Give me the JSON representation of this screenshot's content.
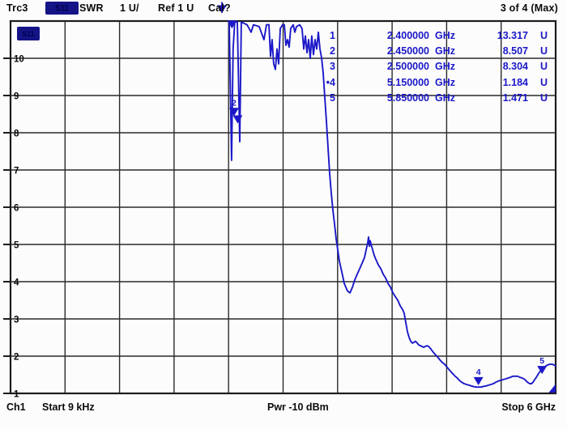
{
  "header": {
    "trace_name": "Trc3",
    "parameter_badge": "S11",
    "measurement": "SWR",
    "scale": "1 U/",
    "reference": "Ref 1 U",
    "cal_label": "Cal?",
    "window_indicator": "3 of 4 (Max)"
  },
  "diagram": {
    "corner_badge": "S11"
  },
  "marker_table": {
    "active_prefix": "•",
    "rows": [
      {
        "num": "1",
        "freq": "2.400000",
        "freq_unit": "GHz",
        "value": "13.317",
        "value_unit": "U",
        "active": false
      },
      {
        "num": "2",
        "freq": "2.450000",
        "freq_unit": "GHz",
        "value": "8.507",
        "value_unit": "U",
        "active": false
      },
      {
        "num": "3",
        "freq": "2.500000",
        "freq_unit": "GHz",
        "value": "8.304",
        "value_unit": "U",
        "active": false
      },
      {
        "num": "4",
        "freq": "5.150000",
        "freq_unit": "GHz",
        "value": "1.184",
        "value_unit": "U",
        "active": true
      },
      {
        "num": "5",
        "freq": "5.850000",
        "freq_unit": "GHz",
        "value": "1.471",
        "value_unit": "U",
        "active": false
      }
    ]
  },
  "y_axis": {
    "labels": [
      "10",
      "9",
      "8",
      "7",
      "6",
      "5",
      "4",
      "3",
      "2",
      "1"
    ]
  },
  "footer": {
    "channel": "Ch1",
    "start": "Start 9 kHz",
    "power": "Pwr -10 dBm",
    "stop": "Stop 6 GHz"
  },
  "colors": {
    "trace": "#1b18c8",
    "marker_text": "#1b18c8",
    "badge": "#141487",
    "grid": "#2a2a2a",
    "border": "#1c1c1c"
  },
  "icons": {
    "marker_offscale": "marker-1-offscale-clamp-icon",
    "trace_end": "trace-end-triangle-icon"
  },
  "grid_markers": [
    {
      "label": "",
      "f": 2.437,
      "s": 10.8
    },
    {
      "label": "2",
      "f": 2.46,
      "s": 8.45
    },
    {
      "label": "",
      "f": 2.5,
      "s": 8.25
    },
    {
      "label": "4",
      "f": 5.15,
      "s": 1.22
    },
    {
      "label": "5",
      "f": 5.85,
      "s": 1.52
    }
  ],
  "chart_data": {
    "type": "line",
    "title": "Trc3 S11 SWR 1 U/ Ref 1 U",
    "xlabel": "Frequency (Start 9 kHz, Stop 6 GHz)",
    "ylabel": "SWR (U)",
    "x_unit": "GHz",
    "xlim": [
      9e-06,
      6
    ],
    "ylim": [
      1,
      11
    ],
    "y_div": 1,
    "grid": true,
    "legend_position": "none",
    "note": "Trace off scale (SWR > 11) from 9 kHz to ~2.4 GHz; only dips visible below 2.4-3.45 GHz",
    "markers": [
      {
        "n": 1,
        "freq_ghz": 2.4,
        "swr": 13.317
      },
      {
        "n": 2,
        "freq_ghz": 2.45,
        "swr": 8.507
      },
      {
        "n": 3,
        "freq_ghz": 2.5,
        "swr": 8.304
      },
      {
        "n": 4,
        "freq_ghz": 5.15,
        "swr": 1.184
      },
      {
        "n": 5,
        "freq_ghz": 5.85,
        "swr": 1.471
      }
    ],
    "series": [
      {
        "name": "Trc3 S11 SWR",
        "points": [
          [
            2.407,
            11.3
          ],
          [
            2.433,
            7.26
          ],
          [
            2.45,
            10.26
          ],
          [
            2.468,
            11.3
          ],
          [
            2.496,
            11.3
          ],
          [
            2.523,
            7.76
          ],
          [
            2.54,
            11.3
          ],
          [
            2.603,
            10.9
          ],
          [
            2.648,
            10.7
          ],
          [
            2.674,
            10.9
          ],
          [
            2.737,
            10.85
          ],
          [
            2.79,
            10.5
          ],
          [
            2.817,
            10.9
          ],
          [
            2.844,
            10.9
          ],
          [
            2.862,
            10.05
          ],
          [
            2.879,
            10.5
          ],
          [
            2.897,
            9.85
          ],
          [
            2.915,
            9.7
          ],
          [
            2.933,
            10.25
          ],
          [
            2.951,
            9.85
          ],
          [
            2.969,
            10.8
          ],
          [
            2.995,
            10.9
          ],
          [
            3.013,
            10.9
          ],
          [
            3.031,
            10.35
          ],
          [
            3.049,
            10.5
          ],
          [
            3.067,
            10.3
          ],
          [
            3.084,
            10.8
          ],
          [
            3.111,
            10.9
          ],
          [
            3.129,
            10.7
          ],
          [
            3.147,
            10.85
          ],
          [
            3.183,
            10.9
          ],
          [
            3.209,
            10.8
          ],
          [
            3.227,
            10.25
          ],
          [
            3.245,
            10.6
          ],
          [
            3.263,
            10.15
          ],
          [
            3.281,
            10.5
          ],
          [
            3.299,
            10.0
          ],
          [
            3.316,
            10.6
          ],
          [
            3.334,
            10.1
          ],
          [
            3.352,
            10.5
          ],
          [
            3.37,
            10.25
          ],
          [
            3.388,
            10.7
          ],
          [
            3.406,
            10.25
          ],
          [
            3.424,
            10.0
          ],
          [
            3.441,
            9.6
          ],
          [
            3.459,
            8.95
          ],
          [
            3.477,
            8.3
          ],
          [
            3.495,
            7.6
          ],
          [
            3.513,
            6.9
          ],
          [
            3.531,
            6.35
          ],
          [
            3.549,
            5.9
          ],
          [
            3.566,
            5.55
          ],
          [
            3.584,
            5.15
          ],
          [
            3.602,
            4.85
          ],
          [
            3.62,
            4.55
          ],
          [
            3.638,
            4.35
          ],
          [
            3.656,
            4.15
          ],
          [
            3.673,
            3.95
          ],
          [
            3.691,
            3.85
          ],
          [
            3.709,
            3.75
          ],
          [
            3.736,
            3.7
          ],
          [
            3.763,
            3.85
          ],
          [
            3.789,
            4.05
          ],
          [
            3.816,
            4.2
          ],
          [
            3.843,
            4.35
          ],
          [
            3.87,
            4.5
          ],
          [
            3.896,
            4.65
          ],
          [
            3.914,
            4.85
          ],
          [
            3.932,
            5.05
          ],
          [
            3.941,
            5.2
          ],
          [
            3.95,
            4.95
          ],
          [
            3.959,
            5.1
          ],
          [
            3.968,
            5.0
          ],
          [
            3.986,
            4.85
          ],
          [
            4.004,
            4.7
          ],
          [
            4.021,
            4.6
          ],
          [
            4.048,
            4.45
          ],
          [
            4.075,
            4.35
          ],
          [
            4.102,
            4.2
          ],
          [
            4.128,
            4.1
          ],
          [
            4.155,
            3.95
          ],
          [
            4.182,
            3.85
          ],
          [
            4.209,
            3.7
          ],
          [
            4.235,
            3.6
          ],
          [
            4.262,
            3.5
          ],
          [
            4.289,
            3.35
          ],
          [
            4.316,
            3.25
          ],
          [
            4.333,
            3.15
          ],
          [
            4.351,
            2.9
          ],
          [
            4.369,
            2.65
          ],
          [
            4.387,
            2.5
          ],
          [
            4.405,
            2.4
          ],
          [
            4.423,
            2.35
          ],
          [
            4.44,
            2.37
          ],
          [
            4.458,
            2.4
          ],
          [
            4.476,
            2.35
          ],
          [
            4.494,
            2.3
          ],
          [
            4.512,
            2.28
          ],
          [
            4.529,
            2.26
          ],
          [
            4.547,
            2.24
          ],
          [
            4.565,
            2.26
          ],
          [
            4.583,
            2.28
          ],
          [
            4.601,
            2.26
          ],
          [
            4.618,
            2.22
          ],
          [
            4.645,
            2.13
          ],
          [
            4.672,
            2.05
          ],
          [
            4.699,
            1.98
          ],
          [
            4.726,
            1.9
          ],
          [
            4.752,
            1.83
          ],
          [
            4.779,
            1.78
          ],
          [
            4.806,
            1.7
          ],
          [
            4.833,
            1.62
          ],
          [
            4.859,
            1.55
          ],
          [
            4.886,
            1.48
          ],
          [
            4.913,
            1.42
          ],
          [
            4.94,
            1.35
          ],
          [
            4.966,
            1.3
          ],
          [
            4.993,
            1.26
          ],
          [
            5.02,
            1.24
          ],
          [
            5.047,
            1.22
          ],
          [
            5.073,
            1.2
          ],
          [
            5.1,
            1.18
          ],
          [
            5.127,
            1.17
          ],
          [
            5.154,
            1.17
          ],
          [
            5.18,
            1.17
          ],
          [
            5.207,
            1.19
          ],
          [
            5.234,
            1.2
          ],
          [
            5.261,
            1.22
          ],
          [
            5.287,
            1.24
          ],
          [
            5.314,
            1.26
          ],
          [
            5.341,
            1.3
          ],
          [
            5.368,
            1.33
          ],
          [
            5.394,
            1.35
          ],
          [
            5.421,
            1.37
          ],
          [
            5.448,
            1.39
          ],
          [
            5.475,
            1.41
          ],
          [
            5.501,
            1.43
          ],
          [
            5.528,
            1.46
          ],
          [
            5.555,
            1.46
          ],
          [
            5.582,
            1.46
          ],
          [
            5.608,
            1.43
          ],
          [
            5.635,
            1.41
          ],
          [
            5.662,
            1.37
          ],
          [
            5.689,
            1.3
          ],
          [
            5.715,
            1.26
          ],
          [
            5.733,
            1.26
          ],
          [
            5.751,
            1.3
          ],
          [
            5.769,
            1.37
          ],
          [
            5.787,
            1.43
          ],
          [
            5.804,
            1.5
          ],
          [
            5.822,
            1.57
          ],
          [
            5.84,
            1.61
          ],
          [
            5.858,
            1.65
          ],
          [
            5.876,
            1.7
          ],
          [
            5.894,
            1.74
          ],
          [
            5.911,
            1.76
          ],
          [
            5.929,
            1.78
          ],
          [
            5.947,
            1.78
          ],
          [
            5.965,
            1.78
          ],
          [
            5.983,
            1.76
          ],
          [
            6.0,
            1.74
          ]
        ]
      }
    ]
  }
}
